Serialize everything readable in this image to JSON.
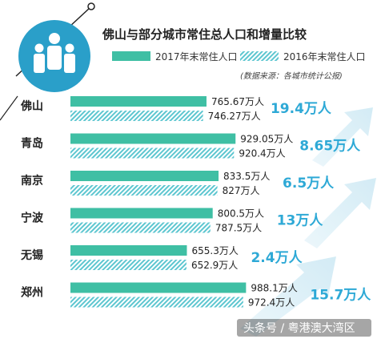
{
  "chart_data": {
    "type": "bar",
    "title": "佛山与部分城市常住总人口和增量比较",
    "source": "(数据来源：各城市统计公报)",
    "unit": "万人",
    "categories": [
      "佛山",
      "青岛",
      "南京",
      "宁波",
      "无锡",
      "郑州"
    ],
    "series": [
      {
        "name": "2017年末常住人口",
        "values": [
          765.67,
          929.05,
          833.5,
          800.5,
          655.3,
          988.1
        ],
        "color": "#3fbfa4"
      },
      {
        "name": "2016年末常住人口",
        "values": [
          746.27,
          920.4,
          827,
          787.5,
          652.9,
          972.4
        ],
        "color": "#5dc6d0"
      }
    ],
    "value_labels": {
      "2017": [
        "765.67万人",
        "929.05万人",
        "833.5万人",
        "800.5万人",
        "655.3万人",
        "988.1万人"
      ],
      "2016": [
        "746.27万人",
        "920.4万人",
        "827万人",
        "787.5万人",
        "652.9万人",
        "972.4万人"
      ]
    },
    "increase_labels": [
      "19.4万人",
      "8.65万人",
      "6.5万人",
      "13万人",
      "2.4万人",
      "15.7万人"
    ],
    "xlim": [
      0,
      1000
    ]
  },
  "watermark": "头条号 / 粤港澳大湾区",
  "colors": {
    "accent": "#2ea9d6",
    "icon_bg": "#2a9fc9",
    "bar2017": "#3fbfa4",
    "bar2016": "#5dc6d0"
  }
}
